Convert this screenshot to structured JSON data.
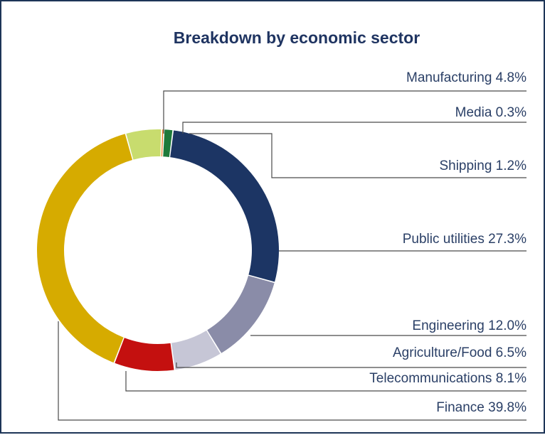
{
  "chart_data": {
    "type": "pie",
    "variant": "donut",
    "title": "Breakdown by economic sector",
    "legend": "none",
    "slices": [
      {
        "label": "Manufacturing 4.8%",
        "name": "Manufacturing",
        "value": 4.8,
        "color": "#c8dc6e"
      },
      {
        "label": "Media 0.3%",
        "name": "Media",
        "value": 0.3,
        "color": "#e8781e"
      },
      {
        "label": "Shipping 1.2%",
        "name": "Shipping",
        "value": 1.2,
        "color": "#1e7a3a"
      },
      {
        "label": "Public utilities 27.3%",
        "name": "Public utilities",
        "value": 27.3,
        "color": "#1c3564"
      },
      {
        "label": "Engineering 12.0%",
        "name": "Engineering",
        "value": 12.0,
        "color": "#8a8ca8"
      },
      {
        "label": "Agriculture/Food 6.5%",
        "name": "Agriculture/Food",
        "value": 6.5,
        "color": "#c6c6d6"
      },
      {
        "label": "Telecommunications 8.1%",
        "name": "Telecommunications",
        "value": 8.1,
        "color": "#c4100f"
      },
      {
        "label": "Finance 39.8%",
        "name": "Finance",
        "value": 39.8,
        "color": "#d6ab00"
      }
    ]
  }
}
